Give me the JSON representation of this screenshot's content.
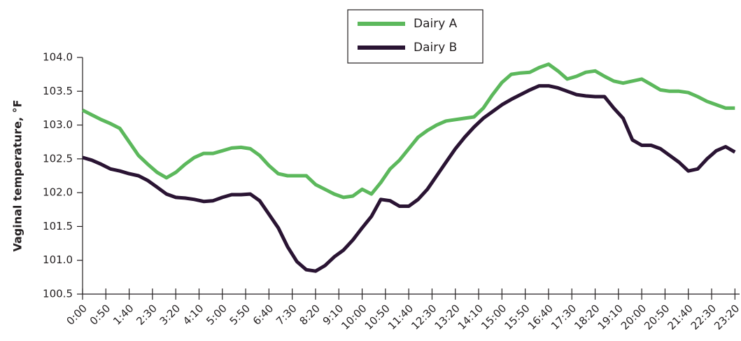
{
  "chart_data": {
    "type": "line",
    "y_label": "Vaginal temperature, °F",
    "x": [
      0,
      20,
      40,
      60,
      80,
      100,
      120,
      140,
      160,
      180,
      200,
      220,
      240,
      260,
      280,
      300,
      320,
      340,
      360,
      380,
      400,
      420,
      440,
      460,
      480,
      500,
      520,
      540,
      560,
      580,
      600,
      620,
      640,
      660,
      680,
      700,
      720,
      740,
      760,
      780,
      800,
      820,
      840,
      860,
      880,
      900,
      920,
      940,
      960,
      980,
      1000,
      1020,
      1040,
      1060,
      1080,
      1100,
      1120,
      1140,
      1160,
      1180,
      1200,
      1220,
      1240,
      1260,
      1280,
      1300,
      1320,
      1340,
      1360,
      1380,
      1400
    ],
    "series": [
      {
        "name": "Dairy A",
        "color": "#5cb85c",
        "values": [
          103.22,
          103.15,
          103.08,
          103.02,
          102.95,
          102.75,
          102.55,
          102.42,
          102.3,
          102.22,
          102.3,
          102.42,
          102.52,
          102.58,
          102.58,
          102.62,
          102.66,
          102.67,
          102.65,
          102.55,
          102.4,
          102.28,
          102.25,
          102.25,
          102.25,
          102.12,
          102.05,
          101.98,
          101.93,
          101.95,
          102.05,
          101.98,
          102.15,
          102.35,
          102.48,
          102.65,
          102.82,
          102.92,
          103.0,
          103.06,
          103.08,
          103.1,
          103.12,
          103.25,
          103.45,
          103.63,
          103.75,
          103.77,
          103.78,
          103.85,
          103.9,
          103.8,
          103.68,
          103.72,
          103.78,
          103.8,
          103.72,
          103.65,
          103.62,
          103.65,
          103.68,
          103.6,
          103.52,
          103.5,
          103.5,
          103.48,
          103.42,
          103.35,
          103.3,
          103.25,
          103.25
        ]
      },
      {
        "name": "Dairy B",
        "color": "#2a1433",
        "values": [
          102.52,
          102.48,
          102.42,
          102.35,
          102.32,
          102.28,
          102.25,
          102.18,
          102.08,
          101.98,
          101.93,
          101.92,
          101.9,
          101.87,
          101.88,
          101.93,
          101.97,
          101.97,
          101.98,
          101.88,
          101.68,
          101.48,
          101.2,
          100.98,
          100.86,
          100.84,
          100.92,
          101.05,
          101.15,
          101.3,
          101.48,
          101.65,
          101.9,
          101.88,
          101.8,
          101.8,
          101.9,
          102.05,
          102.25,
          102.45,
          102.65,
          102.82,
          102.97,
          103.1,
          103.2,
          103.3,
          103.38,
          103.45,
          103.52,
          103.58,
          103.58,
          103.55,
          103.5,
          103.45,
          103.43,
          103.42,
          103.42,
          103.25,
          103.1,
          102.78,
          102.7,
          102.7,
          102.65,
          102.55,
          102.45,
          102.32,
          102.35,
          102.5,
          102.62,
          102.68,
          102.6
        ]
      }
    ],
    "xlim": [
      0,
      1410
    ],
    "xticks": [
      {
        "value": 0,
        "label": "0:00"
      },
      {
        "value": 50,
        "label": "0:50"
      },
      {
        "value": 100,
        "label": "1:40"
      },
      {
        "value": 150,
        "label": "2:30"
      },
      {
        "value": 200,
        "label": "3:20"
      },
      {
        "value": 250,
        "label": "4:10"
      },
      {
        "value": 300,
        "label": "5:00"
      },
      {
        "value": 350,
        "label": "5:50"
      },
      {
        "value": 400,
        "label": "6:40"
      },
      {
        "value": 450,
        "label": "7:30"
      },
      {
        "value": 500,
        "label": "8:20"
      },
      {
        "value": 550,
        "label": "9:10"
      },
      {
        "value": 600,
        "label": "10:00"
      },
      {
        "value": 650,
        "label": "10:50"
      },
      {
        "value": 700,
        "label": "11:40"
      },
      {
        "value": 750,
        "label": "12:30"
      },
      {
        "value": 800,
        "label": "13:20"
      },
      {
        "value": 850,
        "label": "14:10"
      },
      {
        "value": 900,
        "label": "15:00"
      },
      {
        "value": 950,
        "label": "15:50"
      },
      {
        "value": 1000,
        "label": "16:40"
      },
      {
        "value": 1050,
        "label": "17:30"
      },
      {
        "value": 1100,
        "label": "18:20"
      },
      {
        "value": 1150,
        "label": "19:10"
      },
      {
        "value": 1200,
        "label": "20:00"
      },
      {
        "value": 1250,
        "label": "20:50"
      },
      {
        "value": 1300,
        "label": "21:40"
      },
      {
        "value": 1350,
        "label": "22:30"
      },
      {
        "value": 1400,
        "label": "23:20"
      }
    ],
    "ylim": [
      100.5,
      104.0
    ],
    "yticks": [
      {
        "value": 100.5,
        "label": "100.5"
      },
      {
        "value": 101.0,
        "label": "101.0"
      },
      {
        "value": 101.5,
        "label": "101.5"
      },
      {
        "value": 102.0,
        "label": "102.0"
      },
      {
        "value": 102.5,
        "label": "102.5"
      },
      {
        "value": 103.0,
        "label": "103.0"
      },
      {
        "value": 103.5,
        "label": "103.5"
      },
      {
        "value": 104.0,
        "label": "104.0"
      }
    ],
    "grid": false,
    "legend": "top"
  }
}
